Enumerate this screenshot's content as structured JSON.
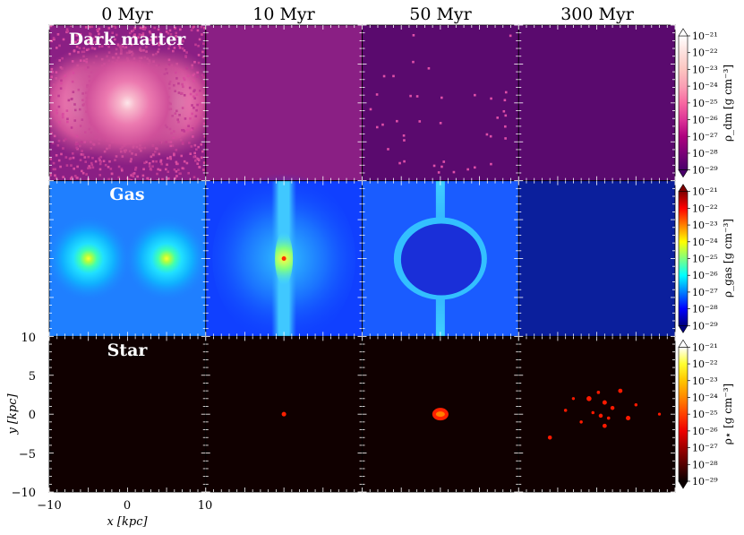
{
  "chart_data": {
    "type": "heatmap",
    "columns": [
      "0 Myr",
      "10 Myr",
      "50 Myr",
      "300 Myr"
    ],
    "rows": [
      {
        "label": "Dark matter",
        "colorbar_label": "ρ_dm [g cm⁻³]",
        "colormap": "RdPu",
        "cmap_colors": [
          "#49006a",
          "#7a0177",
          "#ae017e",
          "#dd3497",
          "#f768a1",
          "#fa9fb5",
          "#fcc5c0",
          "#fde0dd",
          "#ffffff"
        ]
      },
      {
        "label": "Gas",
        "colorbar_label": "ρ_gas [g cm⁻³]",
        "colormap": "jet",
        "cmap_colors": [
          "#00007f",
          "#0000ff",
          "#007fff",
          "#00ffff",
          "#7fff7f",
          "#ffff00",
          "#ff7f00",
          "#ff0000",
          "#7f0000"
        ]
      },
      {
        "label": "Star",
        "colorbar_label": "ρ⋆ [g cm⁻³]",
        "colormap": "hot",
        "cmap_colors": [
          "#0b0000",
          "#550000",
          "#a00000",
          "#ee0000",
          "#ff4000",
          "#ff8800",
          "#ffc500",
          "#ffff30",
          "#ffffff"
        ]
      }
    ],
    "colorbar_ticks": [
      "10⁻²¹",
      "10⁻²²",
      "10⁻²³",
      "10⁻²⁴",
      "10⁻²⁵",
      "10⁻²⁶",
      "10⁻²⁷",
      "10⁻²⁸",
      "10⁻²⁹"
    ],
    "xlabel": "x [kpc]",
    "ylabel": "y [kpc]",
    "xlim": [
      -10,
      10
    ],
    "ylim": [
      -10,
      10
    ],
    "xticks": [
      "−10",
      "0",
      "10"
    ],
    "yticks": [
      "10",
      "5",
      "0",
      "−5",
      "−10"
    ]
  }
}
